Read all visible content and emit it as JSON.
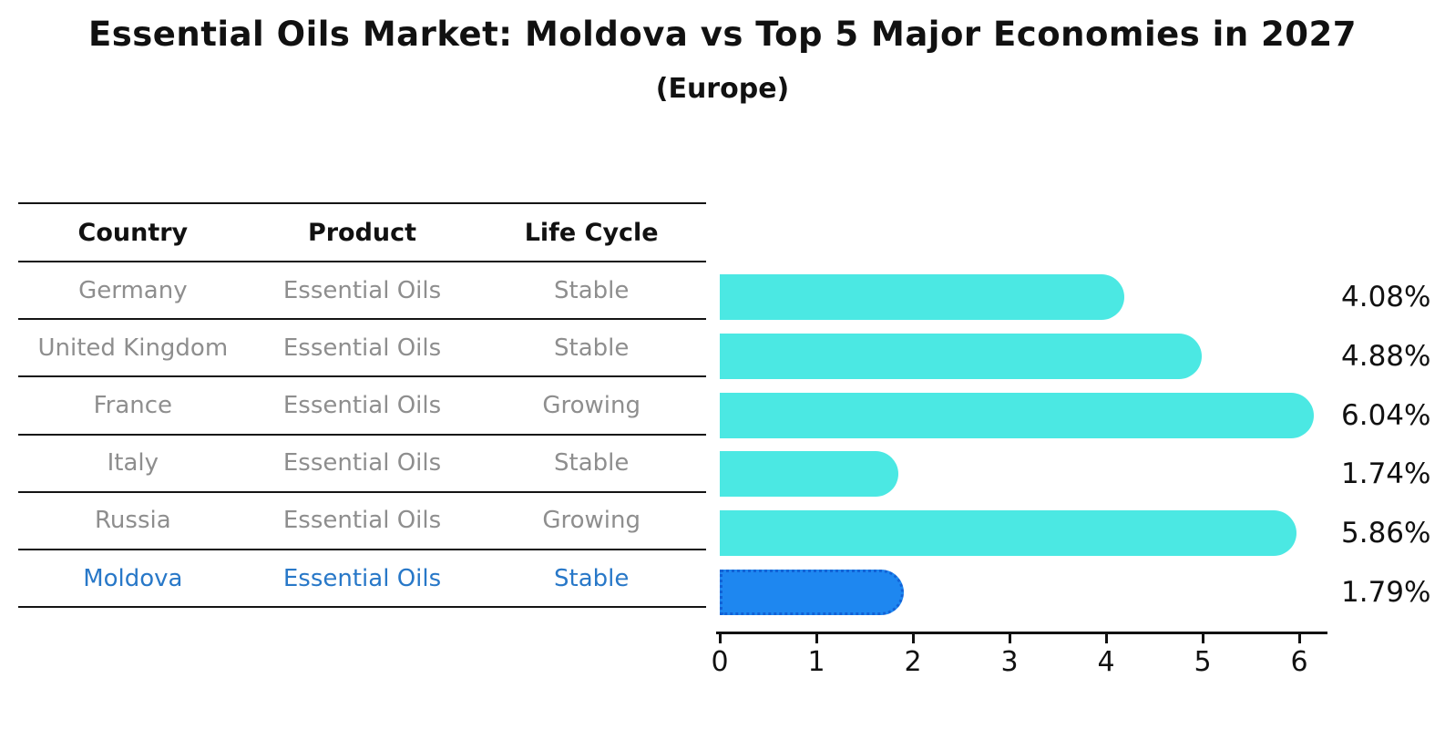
{
  "title": "Essential Oils Market: Moldova vs Top 5 Major Economies in 2027",
  "subtitle": "(Europe)",
  "table": {
    "headers": [
      "Country",
      "Product",
      "Life Cycle"
    ],
    "rows": [
      {
        "country": "Germany",
        "product": "Essential Oils",
        "life_cycle": "Stable",
        "highlight": false
      },
      {
        "country": "United Kingdom",
        "product": "Essential Oils",
        "life_cycle": "Stable",
        "highlight": false
      },
      {
        "country": "France",
        "product": "Essential Oils",
        "life_cycle": "Growing",
        "highlight": false
      },
      {
        "country": "Italy",
        "product": "Essential Oils",
        "life_cycle": "Stable",
        "highlight": false
      },
      {
        "country": "Russia",
        "product": "Essential Oils",
        "life_cycle": "Growing",
        "highlight": false
      },
      {
        "country": "Moldova",
        "product": "Essential Oils",
        "life_cycle": "Stable",
        "highlight": true
      }
    ]
  },
  "chart_data": {
    "type": "bar",
    "orientation": "horizontal",
    "title": "Essential Oils Market: Moldova vs Top 5 Major Economies in 2027 (Europe)",
    "categories": [
      "Germany",
      "United Kingdom",
      "France",
      "Italy",
      "Russia",
      "Moldova"
    ],
    "values": [
      4.08,
      4.88,
      6.04,
      1.74,
      5.86,
      1.79
    ],
    "value_labels": [
      "4.08%",
      "4.88%",
      "6.04%",
      "1.74%",
      "5.86%",
      "1.79%"
    ],
    "x_ticks": [
      "0",
      "1",
      "2",
      "3",
      "4",
      "5",
      "6"
    ],
    "xlim": [
      0,
      6.25
    ],
    "grid": false,
    "legend": "none",
    "highlight_index": 5,
    "bar_color": "#4BE8E3",
    "highlight_bar_color": "#1E87F0",
    "highlight_border_color": "#1262D6",
    "highlight_text_color": "#2878C8"
  },
  "colors": {
    "background": "#FFFFFF",
    "text": "#111111",
    "muted_text": "#8E8E8E",
    "line": "#141414"
  }
}
